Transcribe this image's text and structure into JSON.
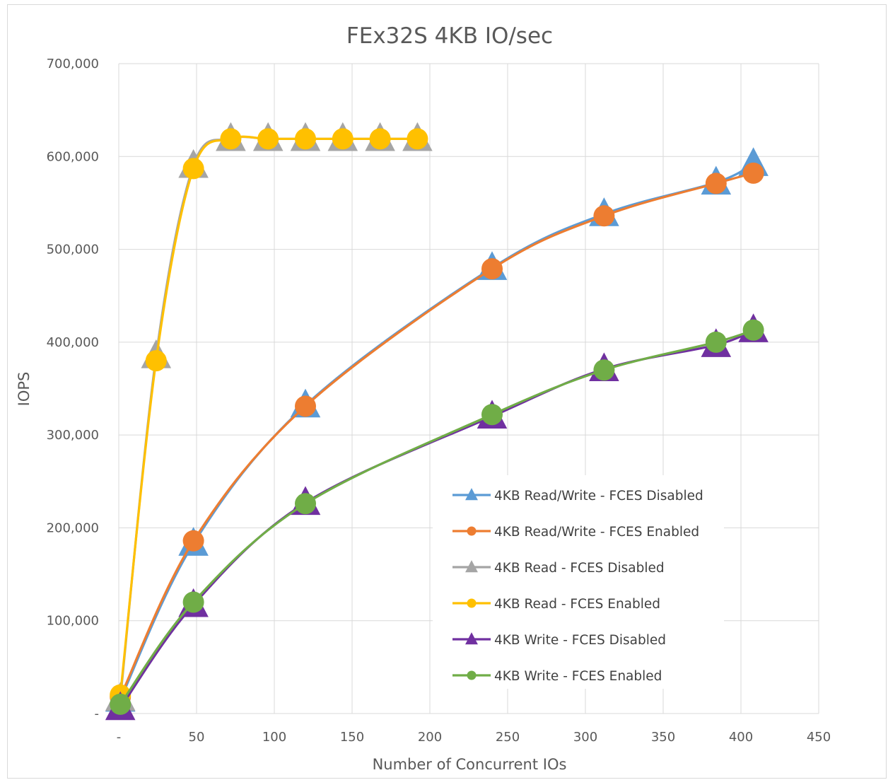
{
  "chart_data": {
    "type": "line",
    "title": "FEx32S 4KB IO/sec",
    "xlabel": "Number of Concurrent IOs",
    "ylabel": "IOPS",
    "xlim": [
      0,
      450
    ],
    "ylim": [
      0,
      700000
    ],
    "x_ticks": [
      0,
      50,
      100,
      150,
      200,
      250,
      300,
      350,
      400,
      450
    ],
    "x_tick_labels": [
      "-",
      "50",
      "100",
      "150",
      "200",
      "250",
      "300",
      "350",
      "400",
      "450"
    ],
    "y_ticks": [
      0,
      100000,
      200000,
      300000,
      400000,
      500000,
      600000,
      700000
    ],
    "y_tick_labels": [
      "-",
      "100,000",
      "200,000",
      "300,000",
      "400,000",
      "500,000",
      "600,000",
      "700,000"
    ],
    "grid": true,
    "smooth": true,
    "legend_position": "bottom-right inside plot",
    "series": [
      {
        "name": "4KB Read/Write - FCES Disabled",
        "color": "#5b9bd5",
        "marker": "triangle",
        "x": [
          1,
          48,
          120,
          240,
          312,
          384,
          408
        ],
        "y": [
          15000,
          183000,
          332000,
          480000,
          538000,
          572000,
          592000
        ]
      },
      {
        "name": "4KB Read/Write - FCES Enabled",
        "color": "#ed7d31",
        "marker": "circle",
        "x": [
          1,
          48,
          120,
          240,
          312,
          384,
          408
        ],
        "y": [
          18000,
          186000,
          331000,
          479000,
          536000,
          571000,
          582000
        ]
      },
      {
        "name": "4KB Read - FCES Disabled",
        "color": "#a5a5a5",
        "marker": "triangle",
        "x": [
          1,
          24,
          48,
          72,
          96,
          120,
          144,
          168,
          192
        ],
        "y": [
          16000,
          385000,
          590000,
          619000,
          619000,
          619000,
          619000,
          619000,
          619000
        ]
      },
      {
        "name": "4KB Read - FCES Enabled",
        "color": "#ffc000",
        "marker": "circle",
        "x": [
          1,
          24,
          48,
          72,
          96,
          120,
          144,
          168,
          192
        ],
        "y": [
          20000,
          380000,
          587000,
          619000,
          619000,
          619000,
          619000,
          619000,
          619000
        ]
      },
      {
        "name": "4KB Write - FCES Disabled",
        "color": "#7030a0",
        "marker": "triangle",
        "x": [
          1,
          48,
          120,
          240,
          312,
          384,
          408
        ],
        "y": [
          6000,
          117000,
          227000,
          320000,
          371000,
          397000,
          413000
        ]
      },
      {
        "name": "4KB Write - FCES Enabled",
        "color": "#70ad47",
        "marker": "circle",
        "x": [
          1,
          48,
          120,
          240,
          312,
          384,
          408
        ],
        "y": [
          10000,
          120000,
          226000,
          322000,
          370000,
          400000,
          413000
        ]
      }
    ]
  }
}
